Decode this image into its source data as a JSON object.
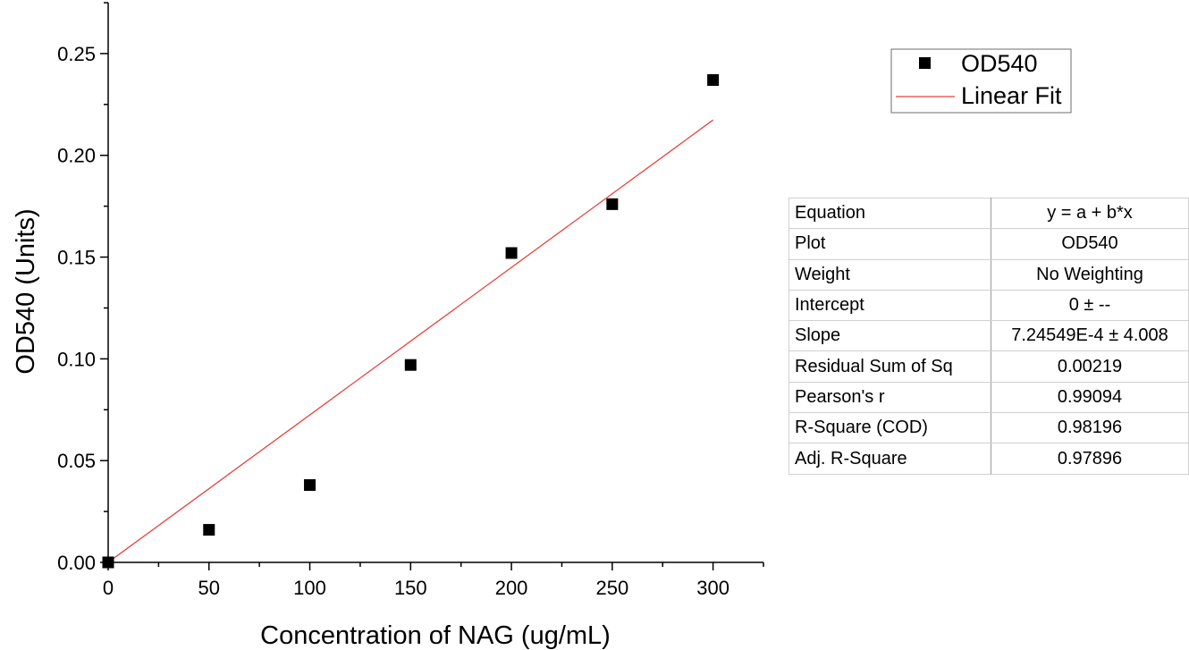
{
  "chart_data": {
    "type": "scatter",
    "title": "",
    "xlabel": "Concentration of NAG (ug/mL)",
    "ylabel": "OD540 (Units)",
    "xlim": [
      0,
      325
    ],
    "ylim": [
      0,
      0.275
    ],
    "x_ticks": [
      "0",
      "50",
      "100",
      "150",
      "200",
      "250",
      "300"
    ],
    "y_ticks": [
      "0.00",
      "0.05",
      "0.10",
      "0.15",
      "0.20",
      "0.25"
    ],
    "grid": false,
    "legend_position": "top-right",
    "series": [
      {
        "name": "OD540",
        "type": "scatter",
        "marker": "square",
        "color": "#000000",
        "x": [
          0,
          50,
          100,
          150,
          200,
          250,
          300
        ],
        "y": [
          0.0,
          0.016,
          0.038,
          0.097,
          0.152,
          0.176,
          0.237
        ]
      },
      {
        "name": "Linear Fit",
        "type": "line",
        "color": "#e8413c",
        "x": [
          0,
          300
        ],
        "y": [
          0.0,
          0.21736
        ]
      }
    ]
  },
  "fit_table": {
    "rows": [
      {
        "key": "Equation",
        "value": "y = a + b*x"
      },
      {
        "key": "Plot",
        "value": "OD540"
      },
      {
        "key": "Weight",
        "value": "No Weighting"
      },
      {
        "key": "Intercept",
        "value": "0 ± --"
      },
      {
        "key": "Slope",
        "value": "7.24549E-4 ± 4.008"
      },
      {
        "key": "Residual Sum of Sq",
        "value": "0.00219"
      },
      {
        "key": "Pearson's r",
        "value": "0.99094"
      },
      {
        "key": "R-Square (COD)",
        "value": "0.98196"
      },
      {
        "key": "Adj. R-Square",
        "value": "0.97896"
      }
    ]
  }
}
